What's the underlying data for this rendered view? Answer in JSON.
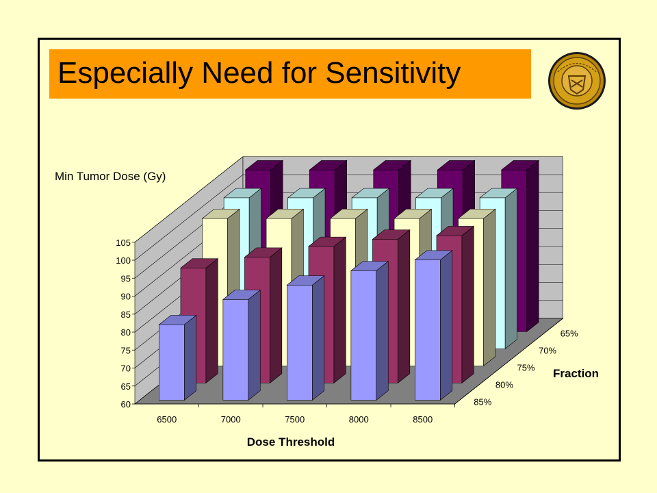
{
  "slide": {
    "title": "Especially Need for Sensitivity",
    "colors": {
      "background": "#ffffcc",
      "title_bar": "#ff9900",
      "frame": "#000000"
    },
    "logo_icon": "university-seal-icon"
  },
  "chart_data": {
    "type": "bar",
    "style": "3d-clustered-column",
    "title": "",
    "xlabel": "Dose Threshold",
    "ylabel": "Min Tumor Dose (Gy)",
    "zlabel": "Fraction",
    "categories": [
      "6500",
      "7000",
      "7500",
      "8000",
      "8500"
    ],
    "yticks": [
      "60",
      "65",
      "70",
      "75",
      "80",
      "85",
      "90",
      "95",
      "100",
      "105"
    ],
    "ylim": [
      60,
      105
    ],
    "grid": true,
    "series": [
      {
        "name": "65%",
        "color": "#660066",
        "values": [
          105,
          105,
          105,
          105,
          105
        ]
      },
      {
        "name": "70%",
        "color": "#ccffff",
        "values": [
          102,
          102,
          102,
          102,
          102
        ]
      },
      {
        "name": "75%",
        "color": "#ffffcc",
        "values": [
          101,
          101,
          101,
          101,
          101
        ]
      },
      {
        "name": "80%",
        "color": "#993366",
        "values": [
          92,
          95,
          98,
          100,
          101
        ]
      },
      {
        "name": "85%",
        "color": "#9999ff",
        "values": [
          81,
          88,
          92,
          96,
          99
        ]
      }
    ]
  }
}
